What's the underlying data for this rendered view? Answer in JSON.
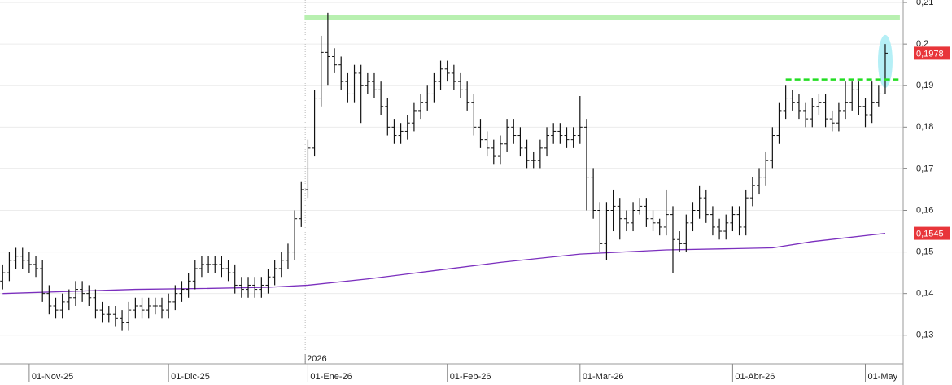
{
  "chart_data": {
    "type": "ohlc",
    "open": [
      0.143,
      0.145,
      0.148,
      0.149,
      0.148,
      0.147,
      0.146,
      0.14,
      0.137,
      0.136,
      0.138,
      0.139,
      0.141,
      0.14,
      0.139,
      0.136,
      0.135,
      0.135,
      0.134,
      0.133,
      0.136,
      0.137,
      0.136,
      0.137,
      0.137,
      0.136,
      0.138,
      0.14,
      0.141,
      0.143,
      0.146,
      0.147,
      0.147,
      0.147,
      0.146,
      0.145,
      0.142,
      0.141,
      0.142,
      0.141,
      0.142,
      0.144,
      0.146,
      0.148,
      0.15,
      0.158,
      0.165,
      0.175,
      0.187,
      0.198,
      0.197,
      0.195,
      0.191,
      0.188,
      0.193,
      0.19,
      0.191,
      0.189,
      0.185,
      0.18,
      0.178,
      0.179,
      0.181,
      0.184,
      0.186,
      0.188,
      0.191,
      0.194,
      0.193,
      0.191,
      0.189,
      0.186,
      0.18,
      0.177,
      0.175,
      0.173,
      0.176,
      0.18,
      0.178,
      0.175,
      0.172,
      0.172,
      0.175,
      0.178,
      0.179,
      0.178,
      0.177,
      0.178,
      0.18,
      0.168,
      0.16,
      0.152,
      0.16,
      0.161,
      0.158,
      0.157,
      0.16,
      0.161,
      0.158,
      0.157,
      0.156,
      0.159,
      0.153,
      0.152,
      0.157,
      0.16,
      0.163,
      0.159,
      0.156,
      0.155,
      0.157,
      0.159,
      0.156,
      0.163,
      0.166,
      0.168,
      0.172,
      0.178,
      0.184,
      0.187,
      0.186,
      0.184,
      0.182,
      0.185,
      0.186,
      0.182,
      0.181,
      0.184,
      0.186,
      0.189,
      0.185,
      0.183,
      0.186,
      0.188
    ],
    "high": [
      0.147,
      0.15,
      0.151,
      0.151,
      0.15,
      0.149,
      0.148,
      0.142,
      0.139,
      0.14,
      0.141,
      0.143,
      0.143,
      0.142,
      0.141,
      0.138,
      0.137,
      0.137,
      0.136,
      0.138,
      0.139,
      0.139,
      0.139,
      0.139,
      0.139,
      0.14,
      0.142,
      0.143,
      0.145,
      0.148,
      0.149,
      0.149,
      0.149,
      0.149,
      0.148,
      0.147,
      0.144,
      0.144,
      0.144,
      0.144,
      0.146,
      0.148,
      0.15,
      0.152,
      0.16,
      0.167,
      0.177,
      0.189,
      0.202,
      0.2075,
      0.199,
      0.197,
      0.193,
      0.195,
      0.195,
      0.193,
      0.193,
      0.191,
      0.187,
      0.182,
      0.181,
      0.183,
      0.186,
      0.188,
      0.19,
      0.193,
      0.196,
      0.196,
      0.195,
      0.193,
      0.191,
      0.188,
      0.182,
      0.179,
      0.177,
      0.178,
      0.182,
      0.182,
      0.18,
      0.177,
      0.174,
      0.177,
      0.18,
      0.181,
      0.181,
      0.18,
      0.18,
      0.1875,
      0.182,
      0.17,
      0.162,
      0.162,
      0.165,
      0.163,
      0.16,
      0.162,
      0.163,
      0.163,
      0.16,
      0.158,
      0.165,
      0.161,
      0.155,
      0.159,
      0.162,
      0.166,
      0.165,
      0.161,
      0.158,
      0.159,
      0.161,
      0.161,
      0.165,
      0.168,
      0.17,
      0.174,
      0.18,
      0.186,
      0.19,
      0.189,
      0.188,
      0.186,
      0.187,
      0.188,
      0.188,
      0.184,
      0.186,
      0.191,
      0.191,
      0.191,
      0.187,
      0.191,
      0.19,
      0.2
    ],
    "low": [
      0.141,
      0.143,
      0.146,
      0.146,
      0.145,
      0.144,
      0.138,
      0.135,
      0.134,
      0.134,
      0.136,
      0.137,
      0.138,
      0.137,
      0.134,
      0.133,
      0.133,
      0.132,
      0.131,
      0.131,
      0.134,
      0.134,
      0.134,
      0.135,
      0.134,
      0.134,
      0.136,
      0.138,
      0.139,
      0.141,
      0.144,
      0.145,
      0.145,
      0.144,
      0.143,
      0.14,
      0.139,
      0.139,
      0.139,
      0.139,
      0.14,
      0.142,
      0.144,
      0.146,
      0.148,
      0.156,
      0.163,
      0.173,
      0.185,
      0.19,
      0.193,
      0.189,
      0.186,
      0.186,
      0.181,
      0.188,
      0.187,
      0.183,
      0.178,
      0.176,
      0.176,
      0.177,
      0.179,
      0.182,
      0.184,
      0.186,
      0.189,
      0.191,
      0.189,
      0.187,
      0.184,
      0.178,
      0.175,
      0.173,
      0.171,
      0.171,
      0.174,
      0.176,
      0.173,
      0.17,
      0.17,
      0.17,
      0.173,
      0.176,
      0.176,
      0.175,
      0.175,
      0.176,
      0.16,
      0.158,
      0.15,
      0.148,
      0.155,
      0.153,
      0.155,
      0.155,
      0.159,
      0.156,
      0.155,
      0.154,
      0.154,
      0.145,
      0.15,
      0.15,
      0.155,
      0.158,
      0.157,
      0.154,
      0.153,
      0.153,
      0.155,
      0.154,
      0.154,
      0.161,
      0.164,
      0.166,
      0.17,
      0.176,
      0.182,
      0.184,
      0.182,
      0.18,
      0.18,
      0.183,
      0.18,
      0.179,
      0.179,
      0.182,
      0.184,
      0.183,
      0.18,
      0.181,
      0.185,
      0.188
    ],
    "close": [
      0.145,
      0.148,
      0.149,
      0.148,
      0.147,
      0.146,
      0.14,
      0.137,
      0.136,
      0.138,
      0.139,
      0.141,
      0.14,
      0.139,
      0.136,
      0.135,
      0.135,
      0.134,
      0.133,
      0.136,
      0.137,
      0.136,
      0.137,
      0.137,
      0.136,
      0.138,
      0.14,
      0.141,
      0.143,
      0.146,
      0.147,
      0.147,
      0.147,
      0.146,
      0.145,
      0.142,
      0.141,
      0.142,
      0.141,
      0.142,
      0.144,
      0.146,
      0.148,
      0.15,
      0.158,
      0.165,
      0.175,
      0.187,
      0.198,
      0.197,
      0.195,
      0.191,
      0.188,
      0.193,
      0.19,
      0.191,
      0.189,
      0.185,
      0.18,
      0.178,
      0.179,
      0.181,
      0.184,
      0.186,
      0.188,
      0.191,
      0.194,
      0.193,
      0.191,
      0.189,
      0.186,
      0.18,
      0.177,
      0.175,
      0.173,
      0.176,
      0.18,
      0.178,
      0.175,
      0.172,
      0.172,
      0.175,
      0.178,
      0.179,
      0.178,
      0.177,
      0.178,
      0.18,
      0.168,
      0.16,
      0.152,
      0.16,
      0.161,
      0.158,
      0.157,
      0.16,
      0.161,
      0.158,
      0.157,
      0.156,
      0.159,
      0.153,
      0.152,
      0.157,
      0.16,
      0.163,
      0.159,
      0.156,
      0.155,
      0.157,
      0.159,
      0.156,
      0.163,
      0.166,
      0.168,
      0.172,
      0.178,
      0.184,
      0.187,
      0.186,
      0.184,
      0.182,
      0.185,
      0.186,
      0.182,
      0.181,
      0.184,
      0.186,
      0.189,
      0.185,
      0.183,
      0.186,
      0.188,
      0.1978
    ],
    "bar_color": "#111111",
    "moving_average": {
      "color": "#7b2fbe",
      "x": [
        0,
        10,
        20,
        30,
        40,
        46,
        55,
        65,
        75,
        87,
        100,
        110,
        116,
        122,
        133
      ],
      "values": [
        0.14,
        0.1405,
        0.141,
        0.1412,
        0.1415,
        0.142,
        0.1435,
        0.1455,
        0.1475,
        0.1495,
        0.1505,
        0.1508,
        0.151,
        0.1525,
        0.1545
      ]
    },
    "xlim": [
      -0.4,
      135.7
    ],
    "xticks": [
      {
        "value": 4,
        "label": "01-Nov-25"
      },
      {
        "value": 25,
        "label": "01-Dic-25"
      },
      {
        "value": 46,
        "label": "01-Ene-26"
      },
      {
        "value": 67,
        "label": "01-Feb-26"
      },
      {
        "value": 87,
        "label": "01-Mar-26"
      },
      {
        "value": 110,
        "label": "01-Abr-26"
      },
      {
        "value": 130,
        "label": "01-May"
      }
    ],
    "year_marker": {
      "value": 45.6,
      "label": "2026"
    },
    "ylim": [
      0.1231,
      0.2106
    ],
    "yticks": [
      {
        "value": 0.13,
        "label": "0,13"
      },
      {
        "value": 0.14,
        "label": "0,14"
      },
      {
        "value": 0.15,
        "label": "0,15"
      },
      {
        "value": 0.16,
        "label": "0,16"
      },
      {
        "value": 0.17,
        "label": "0,17"
      },
      {
        "value": 0.18,
        "label": "0,18"
      },
      {
        "value": 0.19,
        "label": "0,19"
      },
      {
        "value": 0.2,
        "label": "0,2"
      },
      {
        "value": 0.21,
        "label": "0,21"
      }
    ],
    "grid": true,
    "resistance": {
      "value": 0.2065,
      "from": 45.5,
      "to": 135.2,
      "color": "#b8f0b0"
    },
    "breakout_line": {
      "value": 0.1915,
      "from": 118,
      "to": 135,
      "color": "#22dd22"
    },
    "highlight": {
      "x": 133,
      "top": 0.2022,
      "bottom": 0.1895,
      "color": "#a8ecf4"
    },
    "price_labels": [
      {
        "value": 0.1978,
        "label": "0,1978",
        "color": "#e8353a"
      },
      {
        "value": 0.1545,
        "label": "0,1545",
        "color": "#e8353a"
      }
    ]
  }
}
